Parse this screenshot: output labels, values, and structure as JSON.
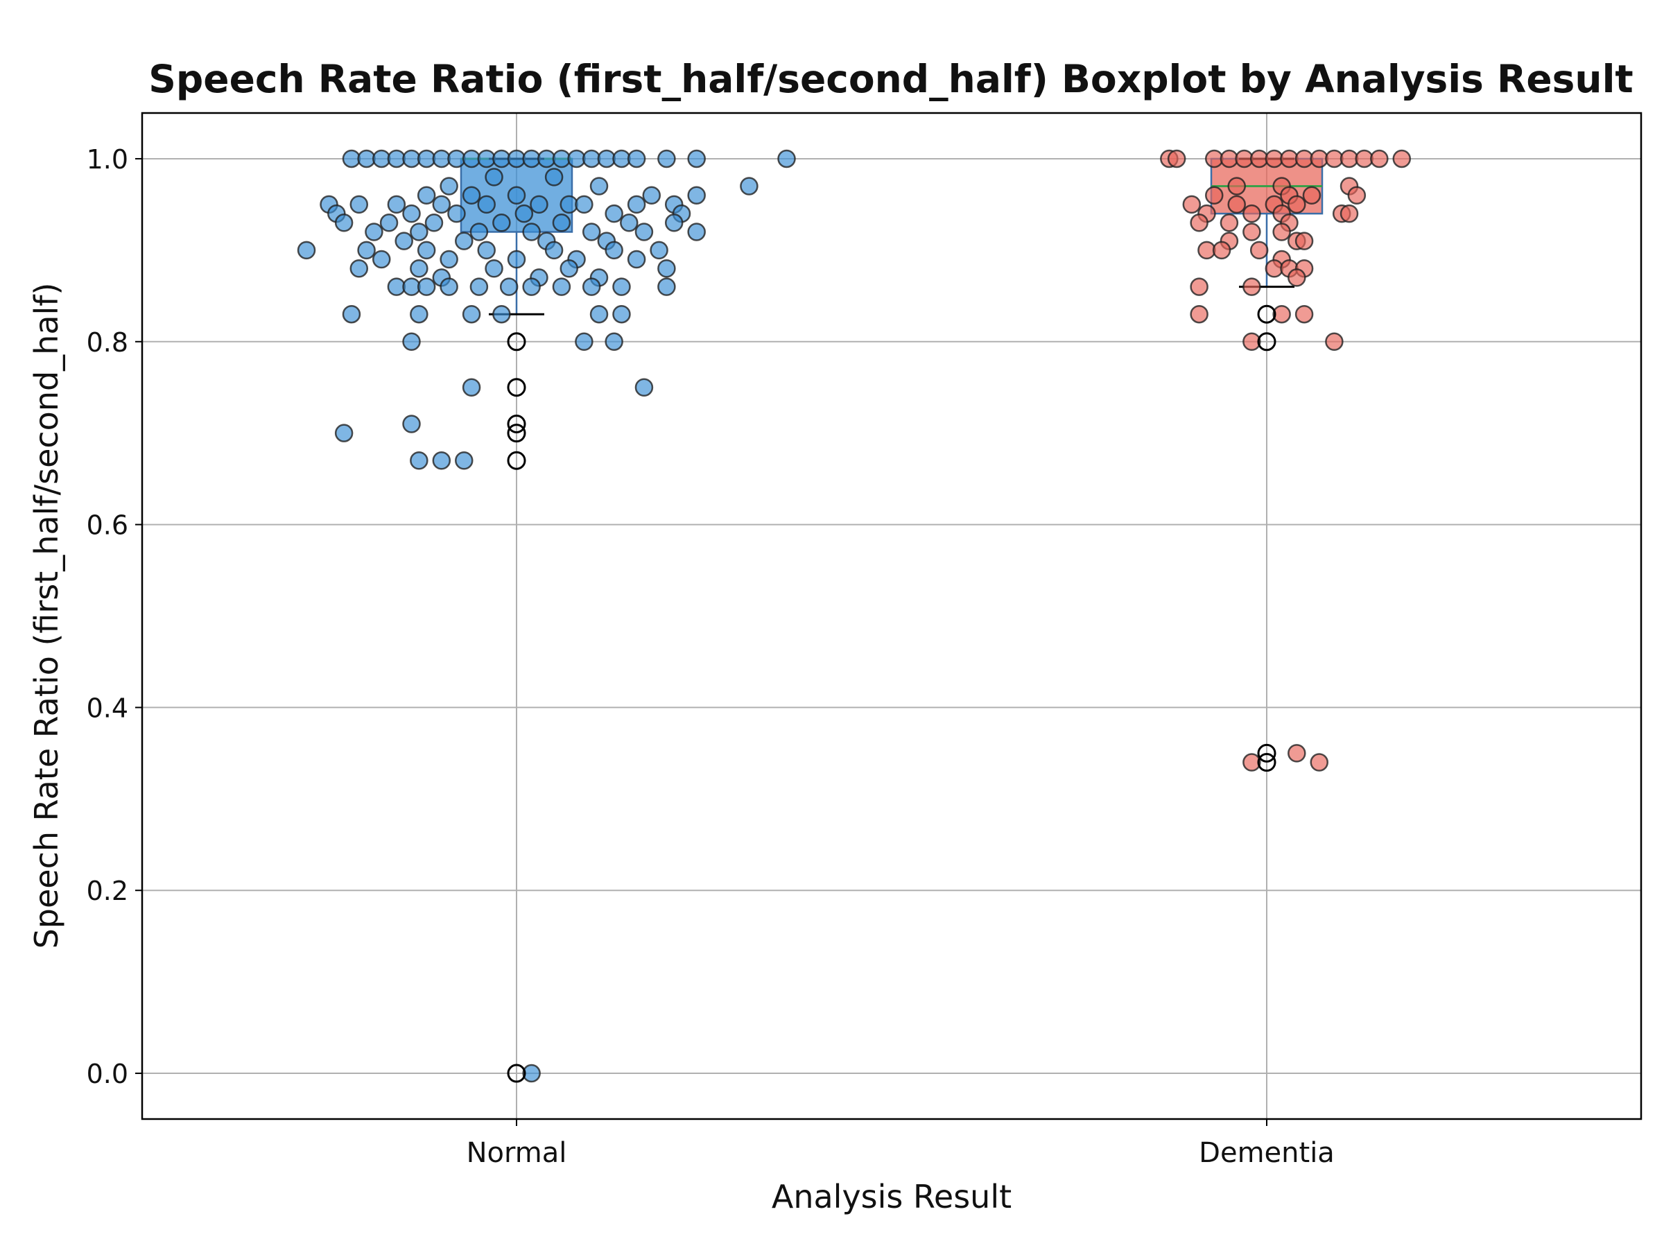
{
  "chart_data": {
    "type": "boxplot",
    "title": "Speech Rate Ratio (first_half/second_half) Boxplot by Analysis Result",
    "xlabel": "Analysis Result",
    "ylabel": "Speech Rate Ratio (first_half/second_half)",
    "ylim": [
      -0.05,
      1.05
    ],
    "yticks": [
      0.0,
      0.2,
      0.4,
      0.6,
      0.8,
      1.0
    ],
    "ytick_labels": [
      "0.0",
      "0.2",
      "0.4",
      "0.6",
      "0.8",
      "1.0"
    ],
    "grid": true,
    "categories": [
      "Normal",
      "Dementia"
    ],
    "series": [
      {
        "category": "Normal",
        "color": "#3a8fd6",
        "box": {
          "q1": 0.92,
          "median": 1.0,
          "q3": 1.0,
          "whisker_low": 0.83,
          "whisker_high": 1.0
        },
        "outliers": [
          0.8,
          0.75,
          0.71,
          0.7,
          0.67,
          0.0
        ],
        "points": [
          {
            "dx": -0.22,
            "y": 1.0
          },
          {
            "dx": -0.2,
            "y": 1.0
          },
          {
            "dx": -0.18,
            "y": 1.0
          },
          {
            "dx": -0.16,
            "y": 1.0
          },
          {
            "dx": -0.14,
            "y": 1.0
          },
          {
            "dx": -0.12,
            "y": 1.0
          },
          {
            "dx": -0.1,
            "y": 1.0
          },
          {
            "dx": -0.08,
            "y": 1.0
          },
          {
            "dx": -0.06,
            "y": 1.0
          },
          {
            "dx": -0.04,
            "y": 1.0
          },
          {
            "dx": -0.02,
            "y": 1.0
          },
          {
            "dx": 0.0,
            "y": 1.0
          },
          {
            "dx": 0.02,
            "y": 1.0
          },
          {
            "dx": 0.04,
            "y": 1.0
          },
          {
            "dx": 0.06,
            "y": 1.0
          },
          {
            "dx": 0.08,
            "y": 1.0
          },
          {
            "dx": 0.1,
            "y": 1.0
          },
          {
            "dx": 0.12,
            "y": 1.0
          },
          {
            "dx": 0.14,
            "y": 1.0
          },
          {
            "dx": 0.16,
            "y": 1.0
          },
          {
            "dx": 0.2,
            "y": 1.0
          },
          {
            "dx": 0.24,
            "y": 1.0
          },
          {
            "dx": 0.36,
            "y": 1.0
          },
          {
            "dx": 0.31,
            "y": 0.97
          },
          {
            "dx": -0.09,
            "y": 0.97
          },
          {
            "dx": -0.03,
            "y": 0.98
          },
          {
            "dx": 0.05,
            "y": 0.98
          },
          {
            "dx": 0.11,
            "y": 0.97
          },
          {
            "dx": 0.18,
            "y": 0.96
          },
          {
            "dx": 0.24,
            "y": 0.96
          },
          {
            "dx": -0.12,
            "y": 0.96
          },
          {
            "dx": -0.06,
            "y": 0.96
          },
          {
            "dx": 0.0,
            "y": 0.96
          },
          {
            "dx": 0.07,
            "y": 0.95
          },
          {
            "dx": -0.25,
            "y": 0.95
          },
          {
            "dx": -0.21,
            "y": 0.95
          },
          {
            "dx": -0.16,
            "y": 0.95
          },
          {
            "dx": -0.1,
            "y": 0.95
          },
          {
            "dx": -0.04,
            "y": 0.95
          },
          {
            "dx": 0.03,
            "y": 0.95
          },
          {
            "dx": 0.09,
            "y": 0.95
          },
          {
            "dx": 0.16,
            "y": 0.95
          },
          {
            "dx": 0.21,
            "y": 0.95
          },
          {
            "dx": -0.24,
            "y": 0.94
          },
          {
            "dx": -0.14,
            "y": 0.94
          },
          {
            "dx": -0.08,
            "y": 0.94
          },
          {
            "dx": 0.01,
            "y": 0.94
          },
          {
            "dx": 0.13,
            "y": 0.94
          },
          {
            "dx": 0.22,
            "y": 0.94
          },
          {
            "dx": -0.23,
            "y": 0.93
          },
          {
            "dx": -0.17,
            "y": 0.93
          },
          {
            "dx": -0.11,
            "y": 0.93
          },
          {
            "dx": -0.02,
            "y": 0.93
          },
          {
            "dx": 0.06,
            "y": 0.93
          },
          {
            "dx": 0.15,
            "y": 0.93
          },
          {
            "dx": 0.21,
            "y": 0.93
          },
          {
            "dx": -0.19,
            "y": 0.92
          },
          {
            "dx": -0.13,
            "y": 0.92
          },
          {
            "dx": -0.05,
            "y": 0.92
          },
          {
            "dx": 0.02,
            "y": 0.92
          },
          {
            "dx": 0.1,
            "y": 0.92
          },
          {
            "dx": 0.17,
            "y": 0.92
          },
          {
            "dx": 0.24,
            "y": 0.92
          },
          {
            "dx": -0.15,
            "y": 0.91
          },
          {
            "dx": -0.07,
            "y": 0.91
          },
          {
            "dx": 0.04,
            "y": 0.91
          },
          {
            "dx": 0.12,
            "y": 0.91
          },
          {
            "dx": -0.28,
            "y": 0.9
          },
          {
            "dx": -0.2,
            "y": 0.9
          },
          {
            "dx": -0.12,
            "y": 0.9
          },
          {
            "dx": -0.04,
            "y": 0.9
          },
          {
            "dx": 0.05,
            "y": 0.9
          },
          {
            "dx": 0.13,
            "y": 0.9
          },
          {
            "dx": 0.19,
            "y": 0.9
          },
          {
            "dx": -0.18,
            "y": 0.89
          },
          {
            "dx": -0.09,
            "y": 0.89
          },
          {
            "dx": 0.0,
            "y": 0.89
          },
          {
            "dx": 0.08,
            "y": 0.89
          },
          {
            "dx": 0.16,
            "y": 0.89
          },
          {
            "dx": -0.21,
            "y": 0.88
          },
          {
            "dx": -0.13,
            "y": 0.88
          },
          {
            "dx": -0.03,
            "y": 0.88
          },
          {
            "dx": 0.07,
            "y": 0.88
          },
          {
            "dx": 0.2,
            "y": 0.88
          },
          {
            "dx": -0.1,
            "y": 0.87
          },
          {
            "dx": 0.03,
            "y": 0.87
          },
          {
            "dx": 0.11,
            "y": 0.87
          },
          {
            "dx": -0.16,
            "y": 0.86
          },
          {
            "dx": -0.14,
            "y": 0.86
          },
          {
            "dx": -0.12,
            "y": 0.86
          },
          {
            "dx": -0.09,
            "y": 0.86
          },
          {
            "dx": -0.05,
            "y": 0.86
          },
          {
            "dx": -0.01,
            "y": 0.86
          },
          {
            "dx": 0.02,
            "y": 0.86
          },
          {
            "dx": 0.06,
            "y": 0.86
          },
          {
            "dx": 0.1,
            "y": 0.86
          },
          {
            "dx": 0.14,
            "y": 0.86
          },
          {
            "dx": 0.2,
            "y": 0.86
          },
          {
            "dx": -0.22,
            "y": 0.83
          },
          {
            "dx": -0.13,
            "y": 0.83
          },
          {
            "dx": -0.06,
            "y": 0.83
          },
          {
            "dx": -0.02,
            "y": 0.83
          },
          {
            "dx": 0.11,
            "y": 0.83
          },
          {
            "dx": 0.14,
            "y": 0.83
          },
          {
            "dx": -0.14,
            "y": 0.8
          },
          {
            "dx": 0.09,
            "y": 0.8
          },
          {
            "dx": 0.13,
            "y": 0.8
          },
          {
            "dx": -0.06,
            "y": 0.75
          },
          {
            "dx": 0.17,
            "y": 0.75
          },
          {
            "dx": -0.14,
            "y": 0.71
          },
          {
            "dx": -0.23,
            "y": 0.7
          },
          {
            "dx": -0.13,
            "y": 0.67
          },
          {
            "dx": -0.1,
            "y": 0.67
          },
          {
            "dx": -0.07,
            "y": 0.67
          },
          {
            "dx": 0.02,
            "y": 0.0
          }
        ]
      },
      {
        "category": "Dementia",
        "color": "#e8665a",
        "box": {
          "q1": 0.94,
          "median": 0.97,
          "q3": 1.0,
          "whisker_low": 0.86,
          "whisker_high": 1.0
        },
        "outliers": [
          0.83,
          0.8,
          0.35,
          0.34
        ],
        "points": [
          {
            "dx": -0.13,
            "y": 1.0
          },
          {
            "dx": -0.12,
            "y": 1.0
          },
          {
            "dx": -0.07,
            "y": 1.0
          },
          {
            "dx": -0.05,
            "y": 1.0
          },
          {
            "dx": -0.03,
            "y": 1.0
          },
          {
            "dx": -0.01,
            "y": 1.0
          },
          {
            "dx": 0.01,
            "y": 1.0
          },
          {
            "dx": 0.03,
            "y": 1.0
          },
          {
            "dx": 0.05,
            "y": 1.0
          },
          {
            "dx": 0.07,
            "y": 1.0
          },
          {
            "dx": 0.09,
            "y": 1.0
          },
          {
            "dx": 0.11,
            "y": 1.0
          },
          {
            "dx": 0.13,
            "y": 1.0
          },
          {
            "dx": 0.15,
            "y": 1.0
          },
          {
            "dx": 0.18,
            "y": 1.0
          },
          {
            "dx": 0.11,
            "y": 0.97
          },
          {
            "dx": 0.12,
            "y": 0.96
          },
          {
            "dx": -0.04,
            "y": 0.97
          },
          {
            "dx": 0.02,
            "y": 0.97
          },
          {
            "dx": -0.07,
            "y": 0.96
          },
          {
            "dx": 0.03,
            "y": 0.96
          },
          {
            "dx": 0.06,
            "y": 0.96
          },
          {
            "dx": -0.1,
            "y": 0.95
          },
          {
            "dx": -0.04,
            "y": 0.95
          },
          {
            "dx": 0.01,
            "y": 0.95
          },
          {
            "dx": 0.04,
            "y": 0.95
          },
          {
            "dx": 0.1,
            "y": 0.94
          },
          {
            "dx": 0.11,
            "y": 0.94
          },
          {
            "dx": -0.08,
            "y": 0.94
          },
          {
            "dx": -0.02,
            "y": 0.94
          },
          {
            "dx": 0.02,
            "y": 0.94
          },
          {
            "dx": -0.05,
            "y": 0.93
          },
          {
            "dx": -0.09,
            "y": 0.93
          },
          {
            "dx": 0.03,
            "y": 0.93
          },
          {
            "dx": -0.02,
            "y": 0.92
          },
          {
            "dx": 0.02,
            "y": 0.92
          },
          {
            "dx": -0.05,
            "y": 0.91
          },
          {
            "dx": 0.04,
            "y": 0.91
          },
          {
            "dx": 0.05,
            "y": 0.91
          },
          {
            "dx": -0.08,
            "y": 0.9
          },
          {
            "dx": -0.06,
            "y": 0.9
          },
          {
            "dx": -0.01,
            "y": 0.9
          },
          {
            "dx": 0.02,
            "y": 0.89
          },
          {
            "dx": 0.01,
            "y": 0.88
          },
          {
            "dx": 0.03,
            "y": 0.88
          },
          {
            "dx": 0.05,
            "y": 0.88
          },
          {
            "dx": 0.04,
            "y": 0.87
          },
          {
            "dx": -0.09,
            "y": 0.86
          },
          {
            "dx": -0.02,
            "y": 0.86
          },
          {
            "dx": -0.09,
            "y": 0.83
          },
          {
            "dx": 0.02,
            "y": 0.83
          },
          {
            "dx": 0.05,
            "y": 0.83
          },
          {
            "dx": -0.02,
            "y": 0.8
          },
          {
            "dx": 0.09,
            "y": 0.8
          },
          {
            "dx": -0.02,
            "y": 0.34
          },
          {
            "dx": 0.04,
            "y": 0.35
          },
          {
            "dx": 0.07,
            "y": 0.34
          }
        ]
      }
    ]
  }
}
